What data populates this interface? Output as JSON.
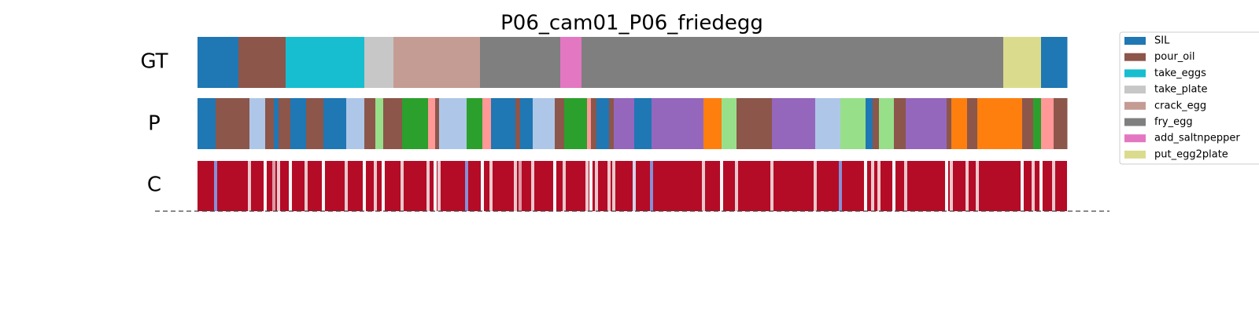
{
  "chart_data": {
    "type": "segmentation",
    "title": "P06_cam01_P06_friedegg",
    "xlim": [
      0,
      1105
    ],
    "legend": [
      {
        "name": "SIL",
        "color": "#1f77b4"
      },
      {
        "name": "pour_oil",
        "color": "#8c564b"
      },
      {
        "name": "take_eggs",
        "color": "#17becf"
      },
      {
        "name": "take_plate",
        "color": "#c7c7c7"
      },
      {
        "name": "crack_egg",
        "color": "#c49c94"
      },
      {
        "name": "fry_egg",
        "color": "#7f7f7f"
      },
      {
        "name": "add_saltnpepper",
        "color": "#e377c2"
      },
      {
        "name": "put_egg2plate",
        "color": "#dbdb8d"
      }
    ],
    "gt": {
      "label": "GT",
      "bounds": [
        0,
        52,
        112,
        212,
        249,
        359,
        461,
        488,
        1024,
        1072,
        1105
      ],
      "classes": [
        0,
        1,
        2,
        3,
        4,
        5,
        6,
        5,
        7,
        0
      ]
    },
    "pred": {
      "label": "P",
      "bounds": [
        0,
        23,
        66,
        86,
        97,
        103,
        118,
        138,
        160,
        189,
        212,
        226,
        236,
        260,
        293,
        302,
        307,
        342,
        362,
        373,
        404,
        410,
        426,
        454,
        466,
        495,
        500,
        507,
        523,
        529,
        555,
        577,
        643,
        666,
        685,
        730,
        785,
        817,
        849,
        858,
        866,
        885,
        900,
        952,
        958,
        978,
        991,
        1048,
        1062,
        1072,
        1088,
        1105
      ],
      "colors": [
        "#1f77b4",
        "#8c564b",
        "#aec7e8",
        "#8c564b",
        "#1f77b4",
        "#8c564b",
        "#1f77b4",
        "#8c564b",
        "#1f77b4",
        "#aec7e8",
        "#8c564b",
        "#98df8a",
        "#8c564b",
        "#2ca02c",
        "#ff9896",
        "#8c564b",
        "#aec7e8",
        "#2ca02c",
        "#ff9896",
        "#1f77b4",
        "#8c564b",
        "#1f77b4",
        "#aec7e8",
        "#8c564b",
        "#2ca02c",
        "#ff9896",
        "#8c564b",
        "#1f77b4",
        "#8c564b",
        "#9467bd",
        "#1f77b4",
        "#9467bd",
        "#ff7f0e",
        "#98df8a",
        "#8c564b",
        "#9467bd",
        "#aec7e8",
        "#98df8a",
        "#1f77b4",
        "#8c564b",
        "#98df8a",
        "#8c564b",
        "#9467bd",
        "#8c564b",
        "#ff7f0e",
        "#8c564b",
        "#ff7f0e",
        "#8c564b",
        "#2ca02c",
        "#ff9896",
        "#8c564b"
      ]
    },
    "conf": {
      "label": "C",
      "x": [
        23,
        66,
        86,
        97,
        103,
        118,
        138,
        160,
        189,
        212,
        226,
        236,
        260,
        293,
        302,
        307,
        342,
        362,
        373,
        404,
        410,
        426,
        454,
        466,
        495,
        500,
        507,
        523,
        529,
        555,
        577,
        643,
        666,
        685,
        730,
        785,
        817,
        849,
        858,
        866,
        885,
        900,
        952,
        958,
        978,
        991,
        1048,
        1062,
        1072,
        1088
      ],
      "values": [
        0.2,
        0.6,
        0.5,
        0.7,
        0.6,
        0.5,
        0.6,
        0.5,
        0.6,
        0.5,
        0.6,
        0.5,
        0.6,
        0.6,
        0.5,
        0.6,
        0.2,
        0.5,
        0.6,
        0.6,
        0.7,
        0.6,
        0.5,
        0.6,
        0.6,
        0.5,
        0.6,
        0.6,
        0.6,
        0.4,
        0.2,
        0.6,
        0.5,
        0.6,
        0.6,
        0.6,
        0.2,
        0.5,
        0.6,
        0.6,
        0.5,
        0.6,
        0.5,
        0.6,
        0.6,
        0.6,
        0.5,
        0.6,
        0.5,
        0.6
      ]
    }
  }
}
